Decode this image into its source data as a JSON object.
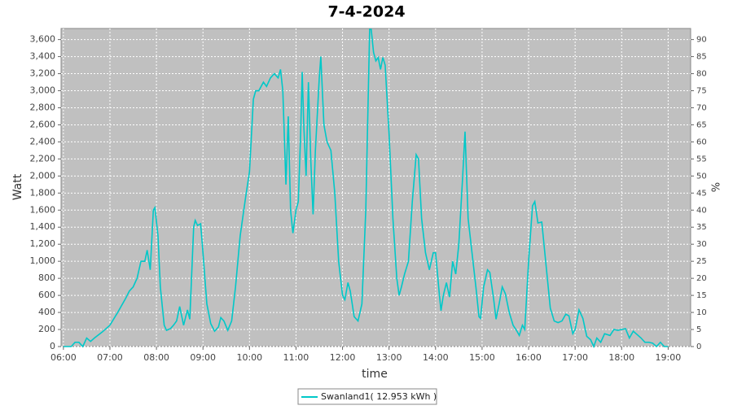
{
  "chart_data": {
    "type": "line",
    "title": "7-4-2024",
    "x_label": "time",
    "y_label": "Watt",
    "y2_label": "%",
    "x": [
      "06:00",
      "06:10",
      "06:15",
      "06:20",
      "06:25",
      "06:30",
      "06:35",
      "06:40",
      "06:50",
      "07:00",
      "07:10",
      "07:20",
      "07:25",
      "07:30",
      "07:35",
      "07:40",
      "07:45",
      "07:48",
      "07:52",
      "07:56",
      "07:58",
      "08:02",
      "08:05",
      "08:10",
      "08:13",
      "08:18",
      "08:22",
      "08:26",
      "08:30",
      "08:35",
      "08:40",
      "08:43",
      "08:48",
      "08:50",
      "08:53",
      "08:57",
      "09:00",
      "09:05",
      "09:10",
      "09:15",
      "09:20",
      "09:23",
      "09:27",
      "09:32",
      "09:37",
      "09:42",
      "09:48",
      "09:55",
      "10:00",
      "10:05",
      "10:08",
      "10:12",
      "10:18",
      "10:22",
      "10:27",
      "10:32",
      "10:37",
      "10:40",
      "10:43",
      "10:47",
      "10:50",
      "10:53",
      "10:56",
      "11:00",
      "11:03",
      "11:06",
      "11:08",
      "11:10",
      "11:13",
      "11:16",
      "11:19",
      "11:22",
      "11:25",
      "11:30",
      "11:32",
      "11:36",
      "11:40",
      "11:45",
      "11:50",
      "11:55",
      "12:00",
      "12:03",
      "12:07",
      "12:10",
      "12:15",
      "12:20",
      "12:25",
      "12:30",
      "12:35",
      "12:37",
      "12:40",
      "12:43",
      "12:46",
      "12:49",
      "12:52",
      "12:55",
      "13:00",
      "13:05",
      "13:10",
      "13:13",
      "13:16",
      "13:20",
      "13:25",
      "13:30",
      "13:35",
      "13:38",
      "13:42",
      "13:47",
      "13:52",
      "13:57",
      "14:00",
      "14:05",
      "14:07",
      "14:10",
      "14:14",
      "14:18",
      "14:22",
      "14:26",
      "14:30",
      "14:35",
      "14:38",
      "14:42",
      "14:47",
      "14:52",
      "14:56",
      "14:58",
      "15:02",
      "15:07",
      "15:10",
      "15:15",
      "15:18",
      "15:22",
      "15:26",
      "15:30",
      "15:35",
      "15:40",
      "15:45",
      "15:48",
      "15:52",
      "15:55",
      "16:00",
      "16:05",
      "16:08",
      "16:12",
      "16:17",
      "16:22",
      "16:28",
      "16:33",
      "16:38",
      "16:43",
      "16:48",
      "16:52",
      "16:57",
      "17:00",
      "17:05",
      "17:10",
      "17:15",
      "17:20",
      "17:24",
      "17:28",
      "17:33",
      "17:38",
      "17:45",
      "17:50",
      "17:55",
      "18:00",
      "18:05",
      "18:10",
      "18:15",
      "18:20",
      "18:25",
      "18:30",
      "18:35",
      "18:40",
      "18:45",
      "18:50",
      "18:55",
      "19:00"
    ],
    "series": [
      {
        "name": "Swanland1( 12.953 kWh )",
        "color": "#00c8c8",
        "values": [
          0,
          0,
          50,
          50,
          0,
          100,
          60,
          100,
          170,
          250,
          400,
          560,
          650,
          700,
          800,
          1000,
          1000,
          1130,
          900,
          1600,
          1630,
          1300,
          700,
          250,
          190,
          210,
          250,
          300,
          470,
          250,
          430,
          320,
          1400,
          1480,
          1420,
          1440,
          1100,
          500,
          270,
          180,
          230,
          340,
          300,
          190,
          300,
          700,
          1300,
          1750,
          2050,
          2900,
          3000,
          3000,
          3100,
          3050,
          3150,
          3200,
          3150,
          3250,
          3000,
          1900,
          2700,
          1600,
          1330,
          1600,
          1700,
          2500,
          3220,
          2600,
          2000,
          3100,
          2200,
          1550,
          2300,
          3150,
          3400,
          2600,
          2400,
          2300,
          1800,
          1000,
          600,
          550,
          750,
          650,
          350,
          300,
          500,
          1600,
          3720,
          3720,
          3450,
          3350,
          3390,
          3250,
          3390,
          3300,
          2500,
          1500,
          800,
          600,
          700,
          850,
          1000,
          1700,
          2250,
          2200,
          1500,
          1100,
          900,
          1100,
          1100,
          600,
          420,
          600,
          750,
          580,
          1000,
          850,
          1200,
          2000,
          2520,
          1500,
          1100,
          700,
          350,
          330,
          700,
          900,
          870,
          550,
          320,
          500,
          700,
          620,
          400,
          250,
          180,
          130,
          250,
          200,
          1000,
          1650,
          1700,
          1450,
          1460,
          1000,
          450,
          300,
          280,
          300,
          380,
          360,
          150,
          200,
          430,
          330,
          120,
          80,
          0,
          100,
          50,
          150,
          130,
          200,
          190,
          200,
          210,
          100,
          180,
          140,
          100,
          50,
          50,
          40,
          0,
          50,
          0,
          0
        ]
      }
    ],
    "xlim": [
      "05:57",
      "19:29"
    ],
    "xticks": [
      "06:00",
      "07:00",
      "08:00",
      "09:00",
      "10:00",
      "11:00",
      "12:00",
      "13:00",
      "14:00",
      "15:00",
      "16:00",
      "17:00",
      "18:00",
      "19:00"
    ],
    "ylim": [
      0,
      3730
    ],
    "yticks": [
      0,
      200,
      400,
      600,
      800,
      {
        "value": 1000,
        "label": "1,000"
      },
      {
        "value": 1200,
        "label": "1,200"
      },
      {
        "value": 1400,
        "label": "1,400"
      },
      {
        "value": 1600,
        "label": "1,600"
      },
      {
        "value": 1800,
        "label": "1,800"
      },
      {
        "value": 2000,
        "label": "2,000"
      },
      {
        "value": 2200,
        "label": "2,200"
      },
      {
        "value": 2400,
        "label": "2,400"
      },
      {
        "value": 2600,
        "label": "2,600"
      },
      {
        "value": 2800,
        "label": "2,800"
      },
      {
        "value": 3000,
        "label": "3,000"
      },
      {
        "value": 3200,
        "label": "3,200"
      },
      {
        "value": 3400,
        "label": "3,400"
      },
      {
        "value": 3600,
        "label": "3,600"
      }
    ],
    "y2lim": [
      0,
      93.25
    ],
    "y2ticks": [
      0,
      5,
      10,
      15,
      20,
      25,
      30,
      35,
      40,
      45,
      50,
      55,
      60,
      65,
      70,
      75,
      80,
      85,
      90
    ],
    "grid": true,
    "legend": "bottom"
  }
}
